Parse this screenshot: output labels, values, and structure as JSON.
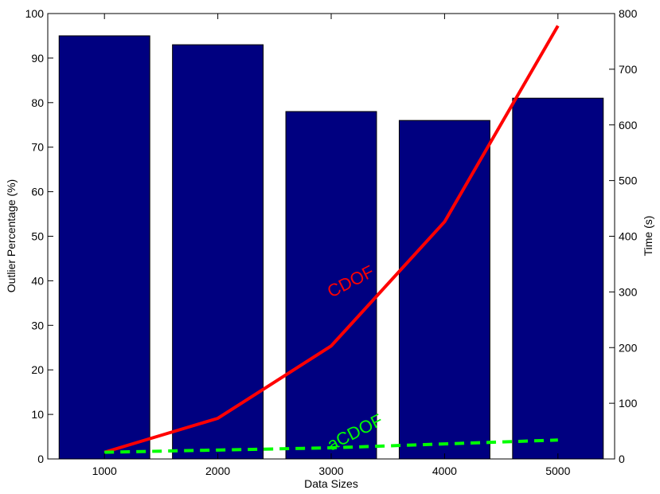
{
  "chart_data": {
    "type": "bar+line",
    "xlabel": "Data Sizes",
    "ylabel_left": "Outlier Percentage (%)",
    "ylabel_right": "Time (s)",
    "categories": [
      "1000",
      "2000",
      "3000",
      "4000",
      "5000"
    ],
    "bar_series": {
      "name": "Outlier Percentage (%)",
      "color": "#000080",
      "values": [
        95,
        93,
        78,
        76,
        81
      ]
    },
    "line_series": [
      {
        "name": "CDOF",
        "label": "CDOF",
        "color": "#ff0000",
        "dashed": false,
        "values": [
          12,
          73,
          203,
          426,
          778
        ]
      },
      {
        "name": "aCDOF",
        "label": "aCDOF",
        "color": "#00ff00",
        "dashed": true,
        "values": [
          12,
          16,
          20,
          27,
          34
        ]
      }
    ],
    "ylim_left": [
      0,
      100
    ],
    "yticks_left": [
      "0",
      "10",
      "20",
      "30",
      "40",
      "50",
      "60",
      "70",
      "80",
      "90",
      "100"
    ],
    "ylim_right": [
      0,
      800
    ],
    "yticks_right": [
      "0",
      "100",
      "200",
      "300",
      "400",
      "500",
      "600",
      "700",
      "800"
    ],
    "grid": false
  }
}
